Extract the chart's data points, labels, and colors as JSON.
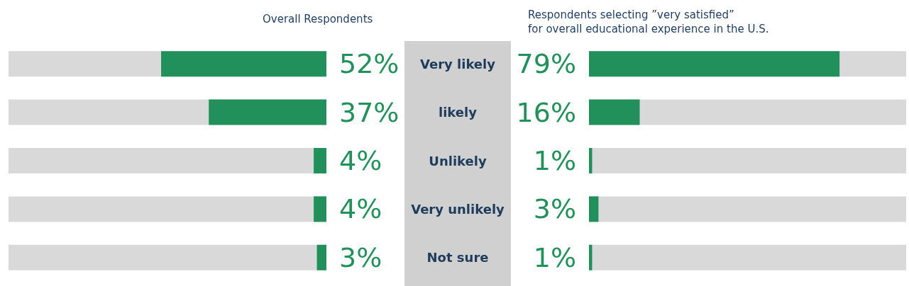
{
  "chart_data": [
    {
      "type": "bar",
      "orientation": "horizontal",
      "title": "Overall Respondents",
      "categories": [
        "Very likely",
        "likely",
        "Unlikely",
        "Very unlikely",
        "Not sure"
      ],
      "values": [
        52,
        37,
        4,
        4,
        3
      ],
      "value_labels": [
        "52%",
        "37%",
        "4%",
        "4%",
        "3%"
      ],
      "color": "#21905a",
      "xlim": [
        100,
        0
      ],
      "tick_labels": "y"
    },
    {
      "type": "bar",
      "orientation": "horizontal",
      "title": "Respondents selecting ”very satisfied”\nfor overall educational experience in the U.S.",
      "categories": [
        null,
        null,
        null,
        null,
        null
      ],
      "values": [
        79,
        16,
        1,
        3,
        1
      ],
      "value_labels": [
        "79%",
        "16%",
        "1%",
        "3%",
        "1%"
      ],
      "color": "#21905a",
      "xlim": [
        0,
        100
      ],
      "tick_labels": false
    }
  ]
}
